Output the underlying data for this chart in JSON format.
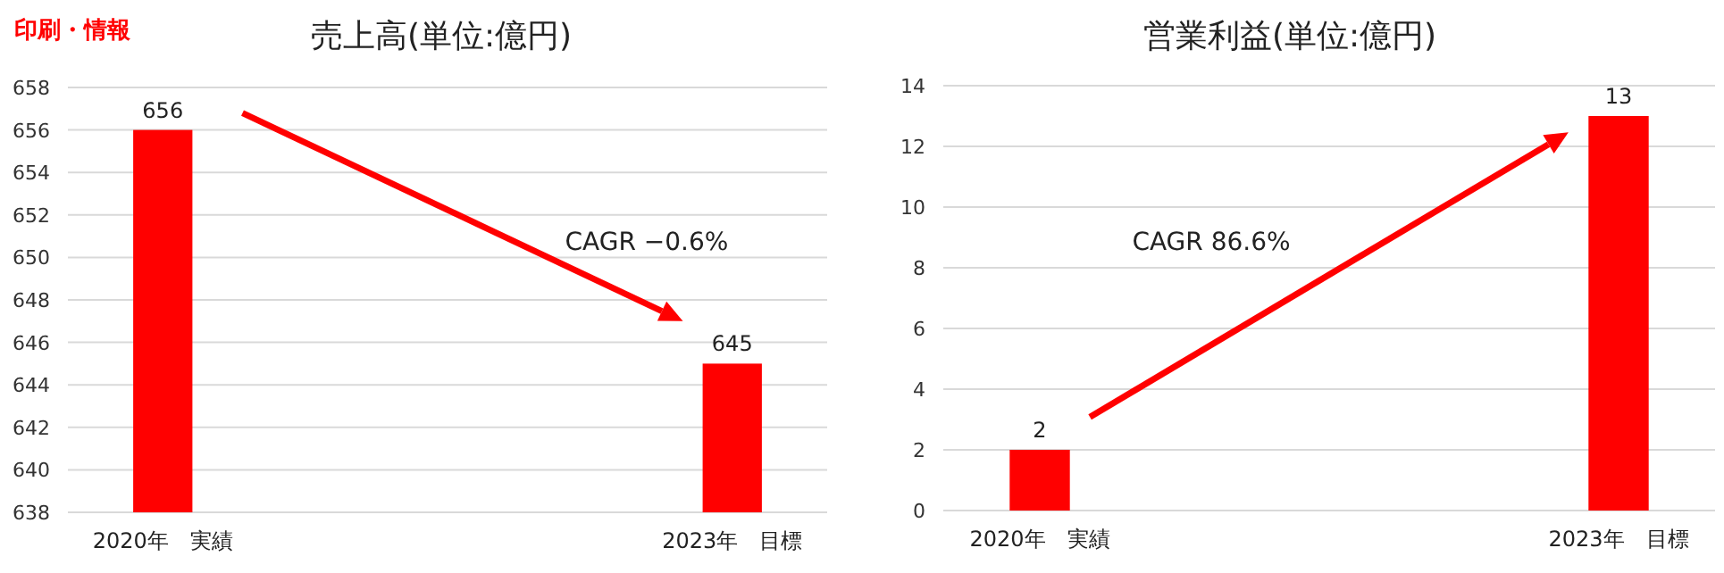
{
  "chart_data": [
    {
      "type": "bar",
      "title": "売上高(単位:億円)",
      "categories": [
        "2020年　実績",
        "2023年　目標"
      ],
      "values": [
        656,
        645
      ],
      "color": "#ff0000",
      "ylim": [
        638,
        658
      ],
      "yticks": [
        638,
        640,
        642,
        644,
        646,
        648,
        650,
        652,
        654,
        656,
        658
      ],
      "grid": "y",
      "data_labels": true,
      "annotations": [
        "印刷・情報",
        "CAGR −0.6%"
      ]
    },
    {
      "type": "bar",
      "title": "営業利益(単位:億円)",
      "categories": [
        "2020年　実績",
        "2023年　目標"
      ],
      "values": [
        2,
        13
      ],
      "color": "#ff0000",
      "ylim": [
        0,
        14
      ],
      "yticks": [
        0,
        2,
        4,
        6,
        8,
        10,
        12,
        14
      ],
      "grid": "y",
      "data_labels": true,
      "annotations": [
        "CAGR 86.6%"
      ]
    }
  ]
}
